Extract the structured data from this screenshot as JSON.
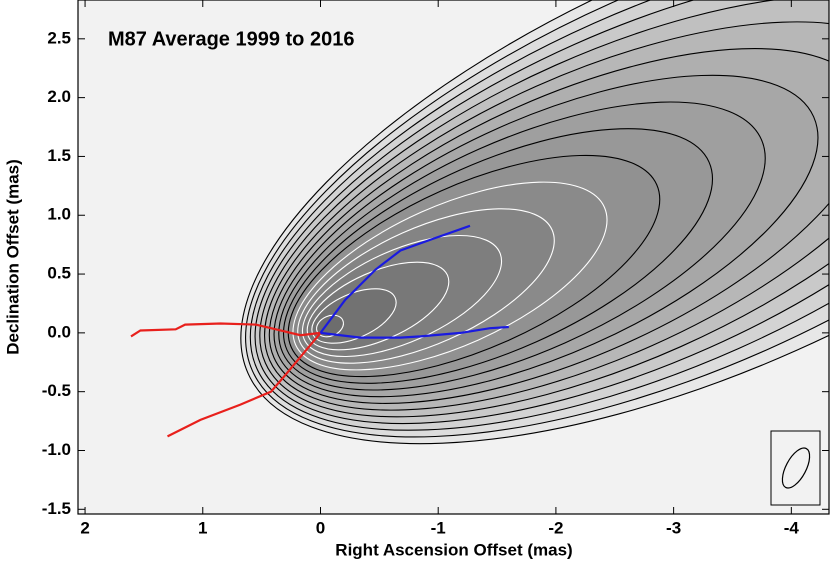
{
  "chart_data": {
    "type": "contour",
    "title": "M87  Average 1999 to 2016",
    "x_label": "Right Ascension Offset (mas)",
    "y_label": "Declination Offset (mas)",
    "xlim": [
      2.06,
      -4.32
    ],
    "ylim": [
      -1.54,
      2.83
    ],
    "xticks": [
      2,
      1,
      0,
      -1,
      -2,
      -3,
      -4
    ],
    "yticks": [
      -1.5,
      {
        "value": -1,
        "label": "-1.0"
      },
      -0.5,
      {
        "value": 0,
        "label": "0.0"
      },
      0.5,
      {
        "value": 1,
        "label": "1.0"
      },
      1.5,
      {
        "value": 2,
        "label": "2.0"
      },
      2.5
    ],
    "series": [
      {
        "color": "#e8201c",
        "x": [
          1.61,
          1.53,
          1.23,
          1.15,
          0.85,
          0.55,
          0.38,
          0.17,
          0
        ],
        "values": [
          -0.03,
          0.02,
          0.03,
          0.07,
          0.08,
          0.07,
          0.03,
          -0.02,
          0
        ]
      },
      {
        "color": "#e8201c",
        "x": [
          0,
          0.3,
          0.42,
          0.68,
          1.02,
          1.3
        ],
        "values": [
          0,
          -0.36,
          -0.5,
          -0.61,
          -0.74,
          -0.88
        ]
      },
      {
        "color": "#1a1ae0",
        "x": [
          0,
          -0.21,
          -0.47,
          -0.68,
          -0.93,
          -1.27
        ],
        "values": [
          0,
          0.28,
          0.54,
          0.7,
          0.79,
          0.91
        ]
      },
      {
        "color": "#1a1ae0",
        "x": [
          0,
          -0.34,
          -0.68,
          -0.85,
          -1.19,
          -1.44,
          -1.6
        ],
        "values": [
          0,
          -0.04,
          -0.04,
          -0.03,
          0,
          0.04,
          0.05
        ]
      }
    ]
  }
}
